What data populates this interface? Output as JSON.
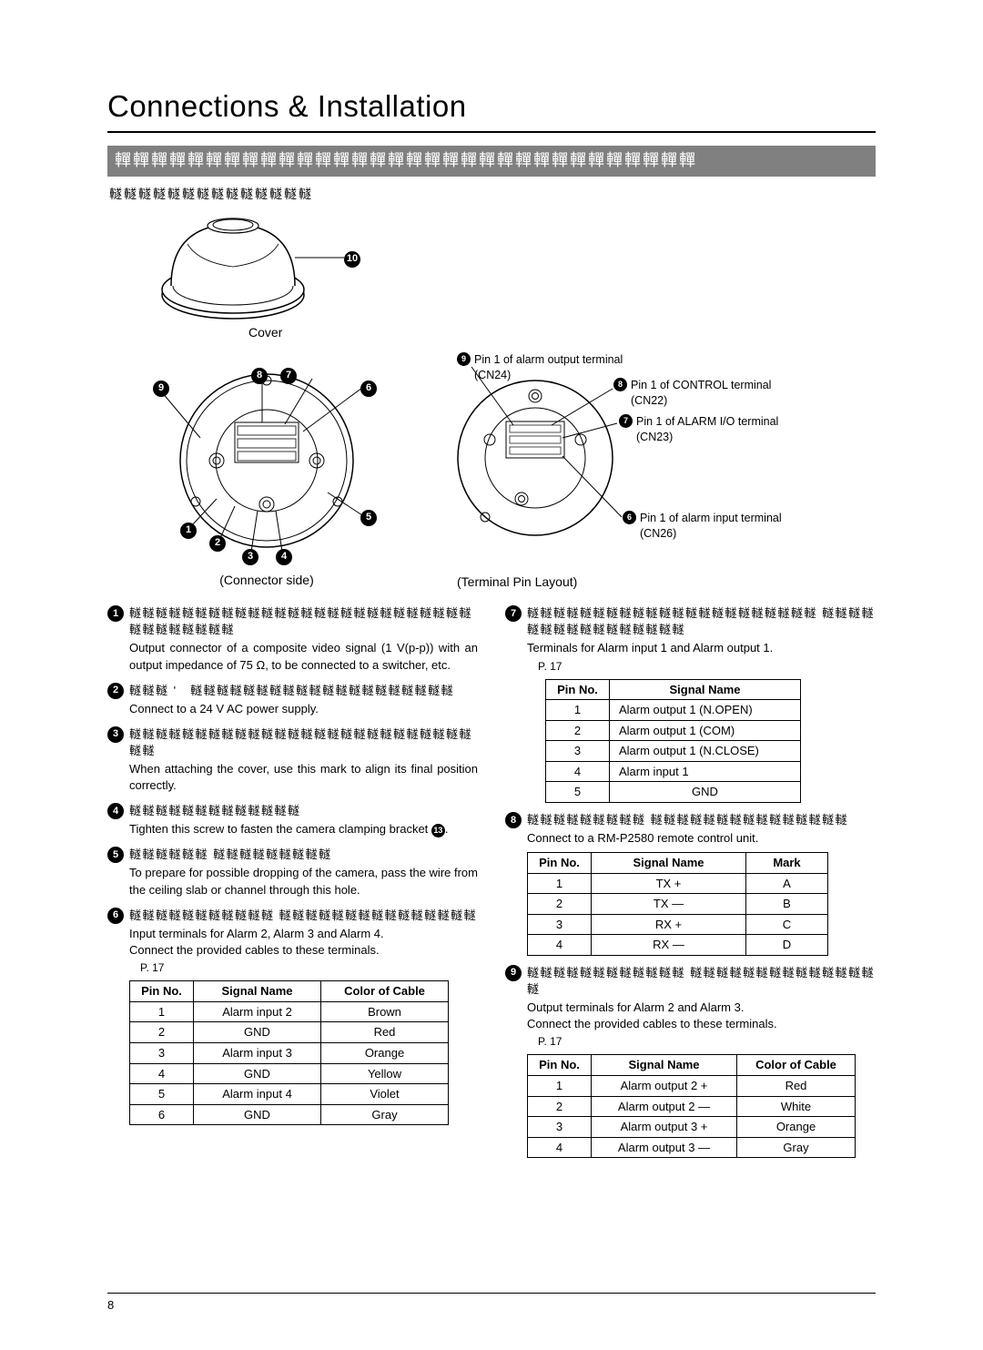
{
  "page": {
    "title": "Connections & Installation",
    "section_bar_placeholder": "䡲䡲䡲䡲䡲䡲䡲䡲䡲䡲䡲䡲䡲䡲䡲䡲䡲䡲䡲䡲䡲䡲䡲䡲䡲䡲䡲䡲䡲䡲䡲䡲",
    "sub_header_placeholder": "䡵䡵䡵䡵䡵䡵䡵䡵䡵䡵䡵䡵䡵䡵",
    "cover_label": "Cover",
    "connector_caption": "(Connector side)",
    "terminal_caption": "(Terminal Pin Layout)",
    "page_number": "8"
  },
  "badges": {
    "b1": "1",
    "b2": "2",
    "b3": "3",
    "b4": "4",
    "b5": "5",
    "b6": "6",
    "b7": "7",
    "b8": "8",
    "b9": "9",
    "b10": "10",
    "b13": "13"
  },
  "right_callouts": {
    "c9": "Pin 1 of alarm output terminal (CN24)",
    "c8": "Pin 1 of CONTROL terminal (CN22)",
    "c7": "Pin 1 of ALARM I/O terminal (CN23)",
    "c6": "Pin 1 of alarm input terminal (CN26)"
  },
  "items_left": [
    {
      "num": "1",
      "head_boxes": "䡵䡵䡵䡵䡵䡵䡵䡵䡵䡵䡵䡵䡵䡵䡵䡵䡵䡵䡵䡵䡵䡵䡵䡵䡵䡵䡵䡵䡵䡵䡵䡵䡵䡵",
      "body": "Output connector of a composite video signal (1 V(p-p)) with an output impedance of 75 Ω, to be connected to a switcher, etc."
    },
    {
      "num": "2",
      "head_boxes": "䡵䡵䡵 ' 䡵䡵䡵䡵䡵䡵䡵䡵䡵䡵䡵䡵䡵䡵䡵䡵䡵䡵䡵䡵",
      "body": "Connect to a 24 V AC power supply."
    },
    {
      "num": "3",
      "head_boxes": "䡵䡵䡵䡵䡵䡵䡵䡵䡵䡵䡵䡵䡵䡵䡵䡵䡵䡵䡵䡵䡵䡵䡵䡵䡵䡵䡵䡵",
      "body": "When attaching the cover, use this mark to align its final position correctly."
    },
    {
      "num": "4",
      "head_boxes": "䡵䡵䡵䡵䡵䡵䡵䡵䡵䡵䡵䡵䡵",
      "body": "Tighten this screw to fasten the camera clamping bracket ",
      "inline_badge": "13",
      "body_after": "."
    },
    {
      "num": "5",
      "head_boxes": "䡵䡵䡵䡵䡵䡵 䡵䡵䡵䡵䡵䡵䡵䡵䡵",
      "body": "To prepare for possible dropping of the camera, pass the wire from the ceiling slab or channel through this hole."
    },
    {
      "num": "6",
      "head_boxes": "䡵䡵䡵䡵䡵䡵䡵䡵䡵䡵䡵 䡵䡵䡵䡵䡵䡵䡵䡵䡵䡵䡵䡵䡵䡵䡵",
      "body": "Input terminals for Alarm 2, Alarm 3 and Alarm 4.\nConnect the provided cables to these terminals.",
      "ref": "P. 17"
    }
  ],
  "items_right": [
    {
      "num": "7",
      "head_boxes": "䡵䡵䡵䡵䡵䡵䡵䡵䡵䡵䡵䡵䡵䡵䡵䡵䡵䡵䡵䡵䡵䡵 䡵䡵䡵䡵䡵䡵䡵䡵䡵䡵䡵䡵䡵䡵䡵䡵",
      "body": "Terminals for Alarm input 1 and Alarm output 1.",
      "ref": "P. 17"
    },
    {
      "num": "8",
      "head_boxes": "䡵䡵䡵䡵䡵䡵䡵䡵䡵 䡵䡵䡵䡵䡵䡵䡵䡵䡵䡵䡵䡵䡵䡵䡵",
      "body": "Connect to a RM-P2580 remote control unit."
    },
    {
      "num": "9",
      "head_boxes": "䡵䡵䡵䡵䡵䡵䡵䡵䡵䡵䡵䡵 䡵䡵䡵䡵䡵䡵䡵䡵䡵䡵䡵䡵䡵䡵䡵",
      "body": "Output terminals for Alarm 2 and Alarm 3.\nConnect the provided cables to these terminals.",
      "ref": "P. 17"
    }
  ],
  "table6": {
    "headers": [
      "Pin No.",
      "Signal Name",
      "Color of Cable"
    ],
    "widths": [
      70,
      140,
      140
    ],
    "rows": [
      [
        "1",
        "Alarm input 2",
        "Brown"
      ],
      [
        "2",
        "GND",
        "Red"
      ],
      [
        "3",
        "Alarm input 3",
        "Orange"
      ],
      [
        "4",
        "GND",
        "Yellow"
      ],
      [
        "5",
        "Alarm input 4",
        "Violet"
      ],
      [
        "6",
        "GND",
        "Gray"
      ]
    ]
  },
  "table7": {
    "headers": [
      "Pin No.",
      "Signal Name"
    ],
    "widths": [
      70,
      210
    ],
    "rows": [
      [
        "1",
        "Alarm output 1 (N.OPEN)"
      ],
      [
        "2",
        "Alarm output 1 (COM)"
      ],
      [
        "3",
        "Alarm output 1 (N.CLOSE)"
      ],
      [
        "4",
        "Alarm input 1"
      ],
      [
        "5",
        "GND"
      ]
    ],
    "left_align_col": 1,
    "center_last_row_col1": true
  },
  "table8": {
    "headers": [
      "Pin No.",
      "Signal Name",
      "Mark"
    ],
    "widths": [
      70,
      170,
      90
    ],
    "rows": [
      [
        "1",
        "TX +",
        "A"
      ],
      [
        "2",
        "TX —",
        "B"
      ],
      [
        "3",
        "RX +",
        "C"
      ],
      [
        "4",
        "RX —",
        "D"
      ]
    ]
  },
  "table9": {
    "headers": [
      "Pin No.",
      "Signal Name",
      "Color of Cable"
    ],
    "widths": [
      70,
      160,
      130
    ],
    "rows": [
      [
        "1",
        "Alarm output 2 +",
        "Red"
      ],
      [
        "2",
        "Alarm output 2 —",
        "White"
      ],
      [
        "3",
        "Alarm output 3 +",
        "Orange"
      ],
      [
        "4",
        "Alarm output 3 —",
        "Gray"
      ]
    ]
  }
}
